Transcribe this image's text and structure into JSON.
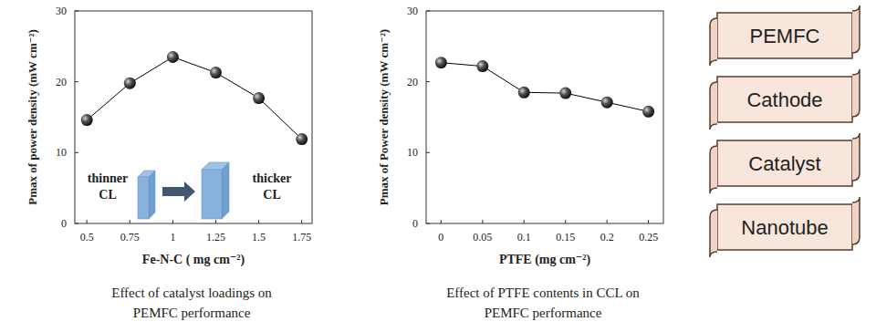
{
  "chart_data": [
    {
      "type": "line",
      "x": [
        0.5,
        0.75,
        1,
        1.25,
        1.5,
        1.75
      ],
      "values": [
        14.6,
        19.8,
        23.5,
        21.3,
        17.7,
        11.9
      ],
      "xlim": [
        0.43,
        1.81
      ],
      "xticks": [
        0.5,
        0.75,
        1,
        1.25,
        1.5,
        1.75
      ],
      "ylim": [
        0,
        30
      ],
      "yticks": [
        0,
        10,
        20,
        30
      ],
      "x_label": "Fe-N-C ( mg cm⁻²)",
      "y_label": "Pmax of power density (mW cm⁻²)",
      "color": "#000000",
      "marker": "circle",
      "line_style": "solid",
      "grid": false,
      "annotations": [
        "thinner CL",
        "thicker CL"
      ],
      "caption": [
        "Effect of catalyst loadings on",
        "PEMFC performance"
      ]
    },
    {
      "type": "line",
      "x": [
        0,
        0.05,
        0.1,
        0.15,
        0.2,
        0.25
      ],
      "values": [
        22.7,
        22.2,
        18.5,
        18.4,
        17.1,
        15.8
      ],
      "xlim": [
        -0.018,
        0.268
      ],
      "xticks": [
        0,
        0.05,
        0.1,
        0.15,
        0.2,
        0.25
      ],
      "ylim": [
        0,
        30
      ],
      "yticks": [
        0,
        10,
        20,
        30
      ],
      "x_label": "PTFE (mg cm⁻²)",
      "y_label": "Pmax of Power density (mW cm⁻²)",
      "color": "#000000",
      "marker": "circle",
      "line_style": "solid",
      "grid": false,
      "caption": [
        "Effect of PTFE contents in CCL on",
        "PEMFC performance"
      ]
    }
  ],
  "keywords": [
    "PEMFC",
    "Cathode",
    "Catalyst",
    "Nanotube"
  ]
}
